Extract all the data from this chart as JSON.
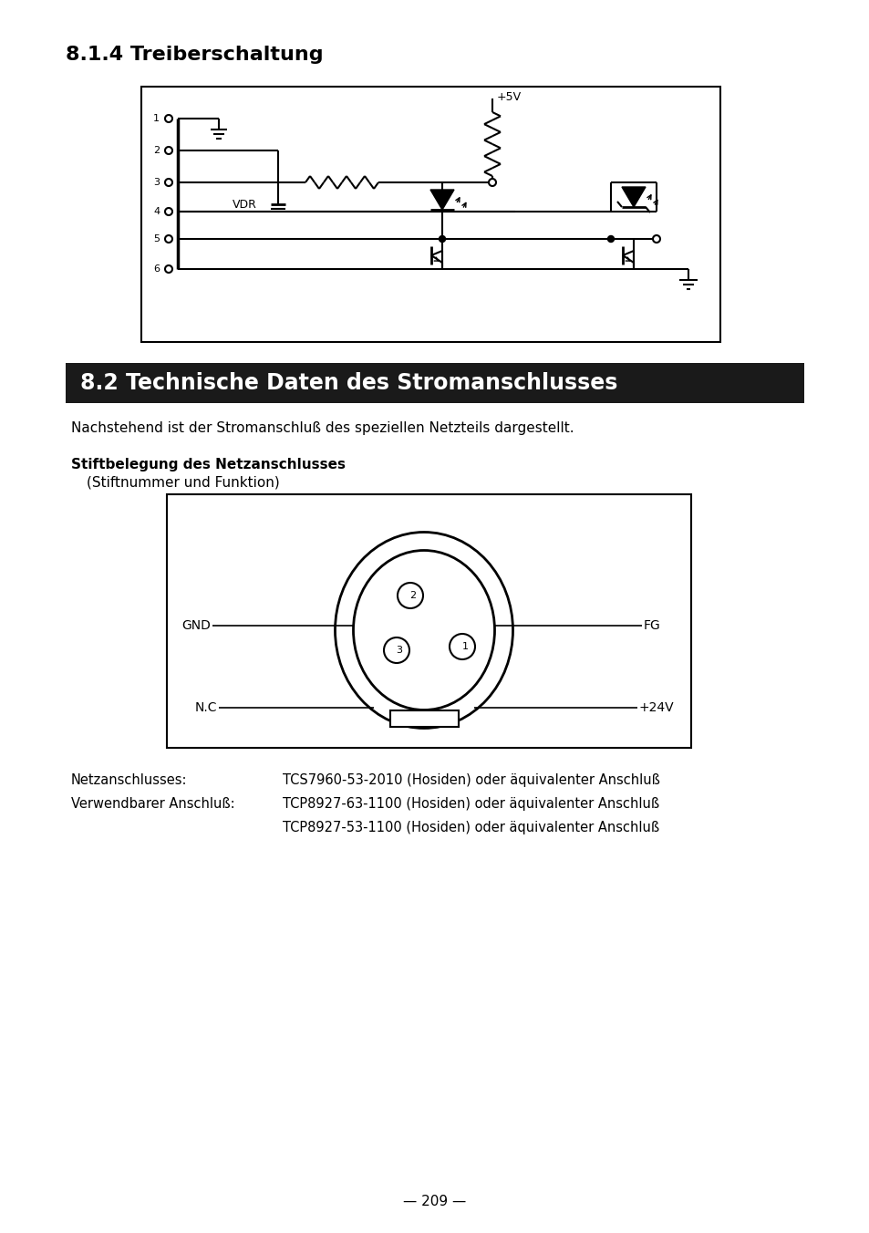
{
  "title1": "8.1.4 Treiberschaltung",
  "title2": "8.2 Technische Daten des Stromanschlusses",
  "para1": "Nachstehend ist der Stromanschluß des speziellen Netzteils dargestellt.",
  "bold_label": "Stiftbelegung des Netzanschlusses",
  "sub_label": "(Stiftnummer und Funktion)",
  "netz_label": "Netzanschlusses:",
  "netz_val": "TCS7960-53-2010 (Hosiden) oder äquivalenter Anschluß",
  "verw_label": "Verwendbarer Anschluß:",
  "verw_val1": "TCP8927-63-1100 (Hosiden) oder äquivalenter Anschluß",
  "verw_val2": "TCP8927-53-1100 (Hosiden) oder äquivalenter Anschluß",
  "page_num": "— 209 —",
  "bg_color": "#ffffff",
  "text_color": "#000000",
  "title2_bg": "#1a1a1a",
  "title2_fg": "#ffffff"
}
